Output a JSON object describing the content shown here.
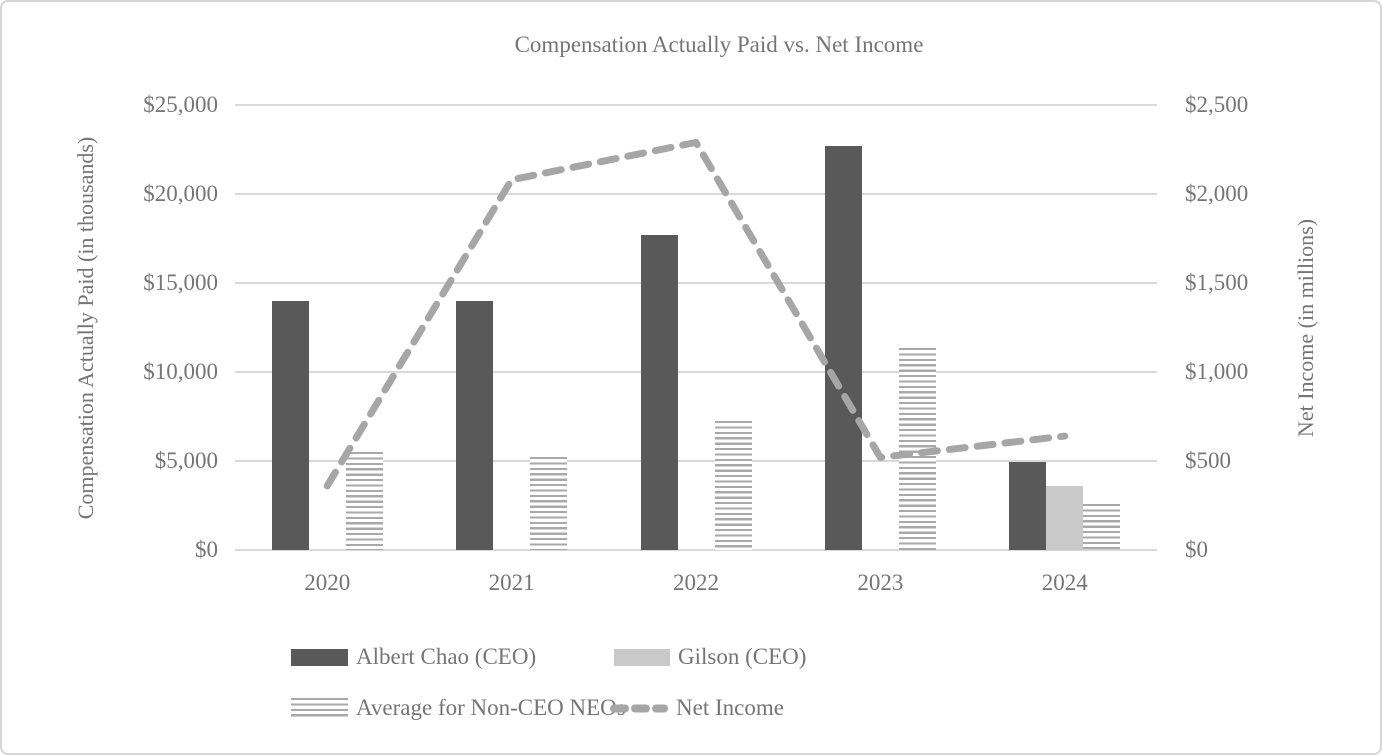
{
  "chart_data": {
    "type": "combo-bar-line",
    "title": "Compensation Actually Paid vs. Net Income",
    "categories": [
      "2020",
      "2021",
      "2022",
      "2023",
      "2024"
    ],
    "left_axis": {
      "title": "Compensation Actually Paid (in thousands)",
      "ticks": [
        "$0",
        "$5,000",
        "$10,000",
        "$15,000",
        "$20,000",
        "$25,000"
      ],
      "min": 0,
      "max": 25000
    },
    "right_axis": {
      "title": "Net Income (in millions)",
      "ticks": [
        "$0",
        "$500",
        "$1,000",
        "$1,500",
        "$2,000",
        "$2,500"
      ],
      "min": 0,
      "max": 2500
    },
    "series": [
      {
        "name": "Albert Chao (CEO)",
        "type": "bar",
        "style": "solid-dark",
        "color": "#595959",
        "axis": "left",
        "values": [
          14000,
          14000,
          17700,
          22700,
          4950
        ]
      },
      {
        "name": "Gilson (CEO)",
        "type": "bar",
        "style": "solid-light",
        "color": "#c9c9c9",
        "axis": "left",
        "values": [
          null,
          null,
          null,
          null,
          3580
        ]
      },
      {
        "name": "Average for Non-CEO NEOs",
        "type": "bar",
        "style": "striped",
        "color": "#a9a9a9",
        "axis": "left",
        "values": [
          5500,
          5200,
          7250,
          11350,
          2600
        ]
      },
      {
        "name": "Net Income",
        "type": "line",
        "style": "dashed",
        "color": "#a6a6a6",
        "axis": "right",
        "values": [
          360,
          2080,
          2290,
          520,
          640
        ]
      }
    ],
    "grid": "horizontal",
    "gridline_color": "#d9d9d9",
    "text_color": "#757575",
    "legend_position": "bottom"
  }
}
